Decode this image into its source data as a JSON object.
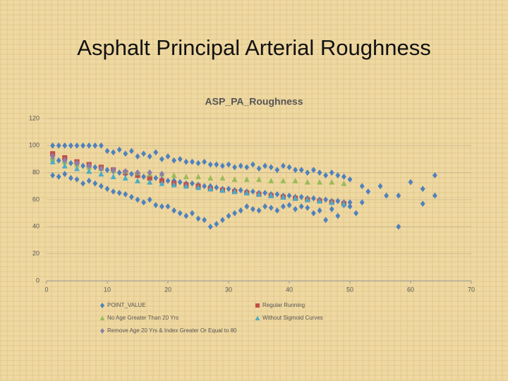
{
  "slide_title": "Asphalt Principal Arterial Roughness",
  "chart_data": {
    "type": "scatter",
    "title": "ASP_PA_Roughness",
    "xlim": [
      0,
      70
    ],
    "xticks": [
      0,
      10,
      20,
      30,
      40,
      50,
      60,
      70
    ],
    "ylim": [
      0,
      120
    ],
    "yticks": [
      0,
      20,
      40,
      60,
      80,
      100,
      120
    ],
    "grid": true,
    "legend": "bottom",
    "series": [
      {
        "name": "POINT_VALUE",
        "color": "#4f81bd",
        "marker": "diamond",
        "x": [
          1,
          1,
          1,
          2,
          2,
          2,
          3,
          3,
          3,
          4,
          4,
          4,
          5,
          5,
          5,
          6,
          6,
          6,
          7,
          7,
          7,
          8,
          8,
          8,
          9,
          9,
          9,
          10,
          10,
          10,
          11,
          11,
          11,
          12,
          12,
          12,
          13,
          13,
          13,
          14,
          14,
          14,
          15,
          15,
          15,
          16,
          16,
          16,
          17,
          17,
          17,
          18,
          18,
          18,
          19,
          19,
          19,
          20,
          20,
          20,
          21,
          21,
          21,
          22,
          22,
          22,
          23,
          23,
          23,
          24,
          24,
          24,
          25,
          25,
          25,
          26,
          26,
          26,
          27,
          27,
          27,
          28,
          28,
          28,
          29,
          29,
          29,
          30,
          30,
          30,
          31,
          31,
          31,
          32,
          32,
          32,
          33,
          33,
          33,
          34,
          34,
          34,
          35,
          35,
          35,
          36,
          36,
          36,
          37,
          37,
          37,
          38,
          38,
          38,
          39,
          39,
          39,
          40,
          40,
          40,
          41,
          41,
          41,
          42,
          42,
          42,
          43,
          43,
          43,
          44,
          44,
          44,
          45,
          45,
          45,
          46,
          46,
          46,
          47,
          47,
          47,
          48,
          48,
          48,
          49,
          49,
          49,
          50,
          50,
          50,
          51,
          52,
          52,
          53,
          55,
          56,
          58,
          58,
          60,
          62,
          62,
          64,
          64
        ],
        "values": [
          100,
          90,
          78,
          100,
          89,
          77,
          100,
          88,
          79,
          100,
          87,
          76,
          100,
          86,
          75,
          100,
          85,
          72,
          100,
          84,
          74,
          100,
          84,
          72,
          100,
          83,
          70,
          96,
          82,
          68,
          95,
          81,
          66,
          97,
          80,
          65,
          94,
          79,
          64,
          96,
          79,
          62,
          92,
          78,
          60,
          94,
          77,
          58,
          92,
          76,
          60,
          95,
          76,
          56,
          90,
          75,
          55,
          92,
          74,
          55,
          89,
          74,
          52,
          90,
          73,
          50,
          88,
          72,
          48,
          88,
          72,
          50,
          87,
          71,
          46,
          88,
          70,
          45,
          86,
          70,
          40,
          86,
          69,
          42,
          85,
          68,
          45,
          86,
          68,
          48,
          84,
          67,
          50,
          85,
          67,
          52,
          84,
          66,
          55,
          86,
          66,
          53,
          83,
          65,
          52,
          85,
          65,
          55,
          84,
          64,
          54,
          82,
          64,
          52,
          85,
          63,
          55,
          84,
          63,
          56,
          82,
          62,
          53,
          82,
          62,
          55,
          80,
          61,
          54,
          82,
          61,
          50,
          80,
          60,
          52,
          78,
          60,
          45,
          80,
          59,
          53,
          78,
          59,
          48,
          77,
          58,
          56,
          75,
          58,
          55,
          50,
          58,
          70,
          66,
          70,
          63,
          40,
          63,
          73,
          68,
          57,
          78,
          63
        ]
      },
      {
        "name": "Regular Running",
        "color": "#c0504d",
        "marker": "square",
        "x": [
          1,
          3,
          5,
          7,
          9,
          11,
          13,
          15,
          17,
          19,
          21,
          23,
          25,
          27,
          29,
          31,
          33,
          35,
          37,
          39,
          41,
          43,
          45,
          47,
          49
        ],
        "values": [
          94,
          91,
          88,
          86,
          84,
          82,
          80,
          78,
          76,
          74,
          72,
          71,
          70,
          68,
          67,
          66,
          65,
          64,
          63,
          62,
          61,
          60,
          59,
          58,
          57
        ]
      },
      {
        "name": "No Age Greater Than 20 Yrs",
        "color": "#9bbb59",
        "marker": "triangle",
        "x": [
          1,
          3,
          5,
          7,
          9,
          11,
          13,
          15,
          17,
          19,
          21,
          23,
          25,
          27,
          29,
          31,
          33,
          35,
          37,
          39,
          41,
          43,
          45,
          47,
          49
        ],
        "values": [
          90,
          88,
          86,
          84,
          83,
          82,
          81,
          80,
          79,
          79,
          78,
          77,
          77,
          76,
          76,
          75,
          75,
          75,
          74,
          74,
          74,
          73,
          73,
          73,
          72
        ]
      },
      {
        "name": "Without Sigmoid Curves",
        "color": "#4bacc6",
        "marker": "triangle",
        "x": [
          1,
          3,
          5,
          7,
          9,
          11,
          13,
          15,
          17,
          19,
          21,
          23,
          25,
          27,
          29,
          31,
          33,
          35,
          37,
          39,
          41,
          43,
          45,
          47,
          49
        ],
        "values": [
          88,
          85,
          83,
          81,
          79,
          77,
          76,
          74,
          73,
          72,
          71,
          70,
          69,
          68,
          67,
          66,
          65,
          64,
          63,
          62,
          61,
          60,
          59,
          58,
          57
        ]
      },
      {
        "name": "Remove Age 20 Yrs & Index Greater Or Equal to 80",
        "color": "#8c7fa8",
        "marker": "diamond",
        "x": [
          1,
          3,
          5,
          7,
          9,
          11,
          13,
          15,
          17,
          19
        ],
        "values": [
          92,
          89,
          87,
          85,
          83,
          82,
          81,
          80,
          80,
          79
        ]
      }
    ]
  }
}
